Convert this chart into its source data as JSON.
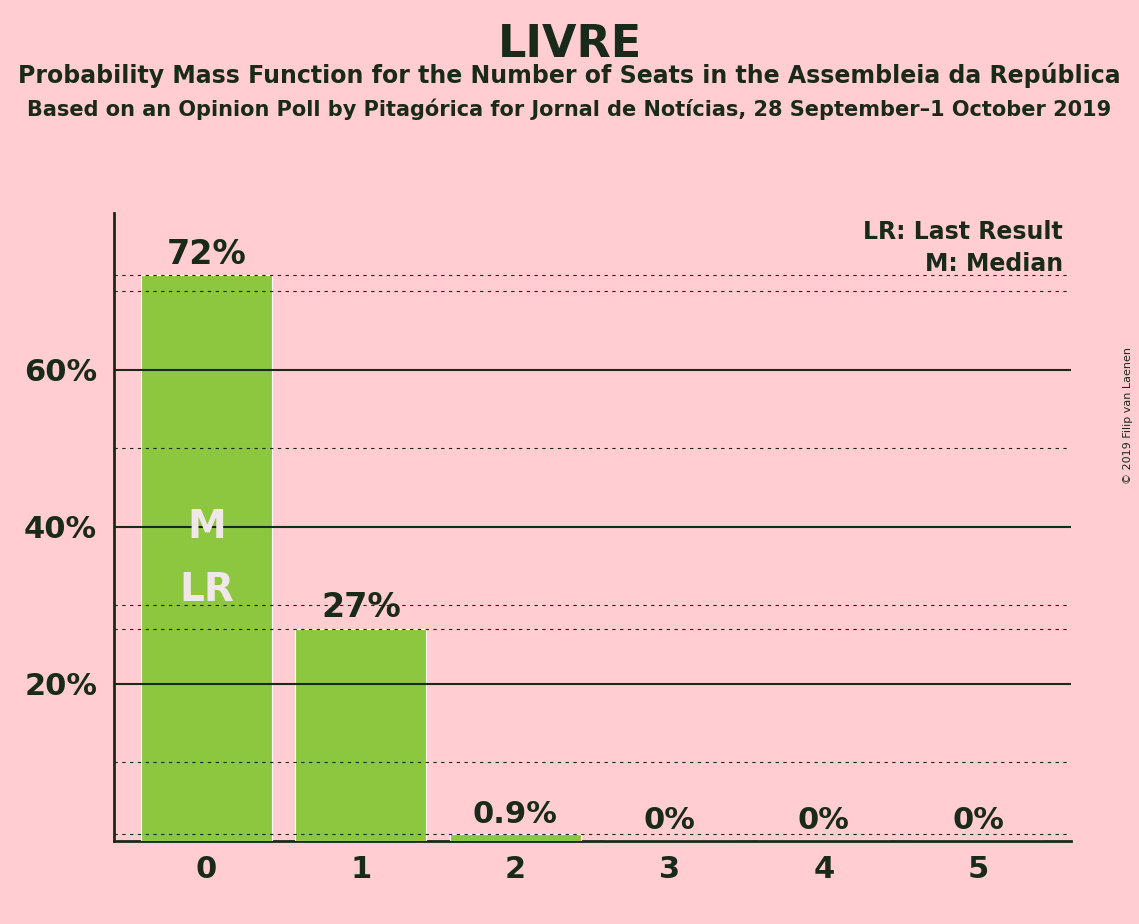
{
  "title": "LIVRE",
  "subtitle": "Probability Mass Function for the Number of Seats in the Assembleia da República",
  "source": "Based on an Opinion Poll by Pitagórica for Jornal de Notícias, 28 September–1 October 2019",
  "copyright": "© 2019 Filip van Laenen",
  "categories": [
    0,
    1,
    2,
    3,
    4,
    5
  ],
  "values": [
    0.72,
    0.27,
    0.009,
    0.0,
    0.0,
    0.0
  ],
  "bar_color": "#8DC63F",
  "background_color": "#FFCDD2",
  "text_color": "#1A2A1A",
  "median": 0,
  "last_result": 0,
  "ylim_max": 0.8,
  "yticks": [
    0.2,
    0.4,
    0.6
  ],
  "dotted_lines": [
    0.1,
    0.3,
    0.5,
    0.7
  ],
  "solid_lines": [
    0.2,
    0.4,
    0.6
  ],
  "bar_label_color_inside": "#F0E8E8",
  "legend_lr": "LR: Last Result",
  "legend_m": "M: Median",
  "bar_label_fontsize": 22,
  "tick_fontsize": 22,
  "title_fontsize": 32,
  "subtitle_fontsize": 17,
  "source_fontsize": 15
}
